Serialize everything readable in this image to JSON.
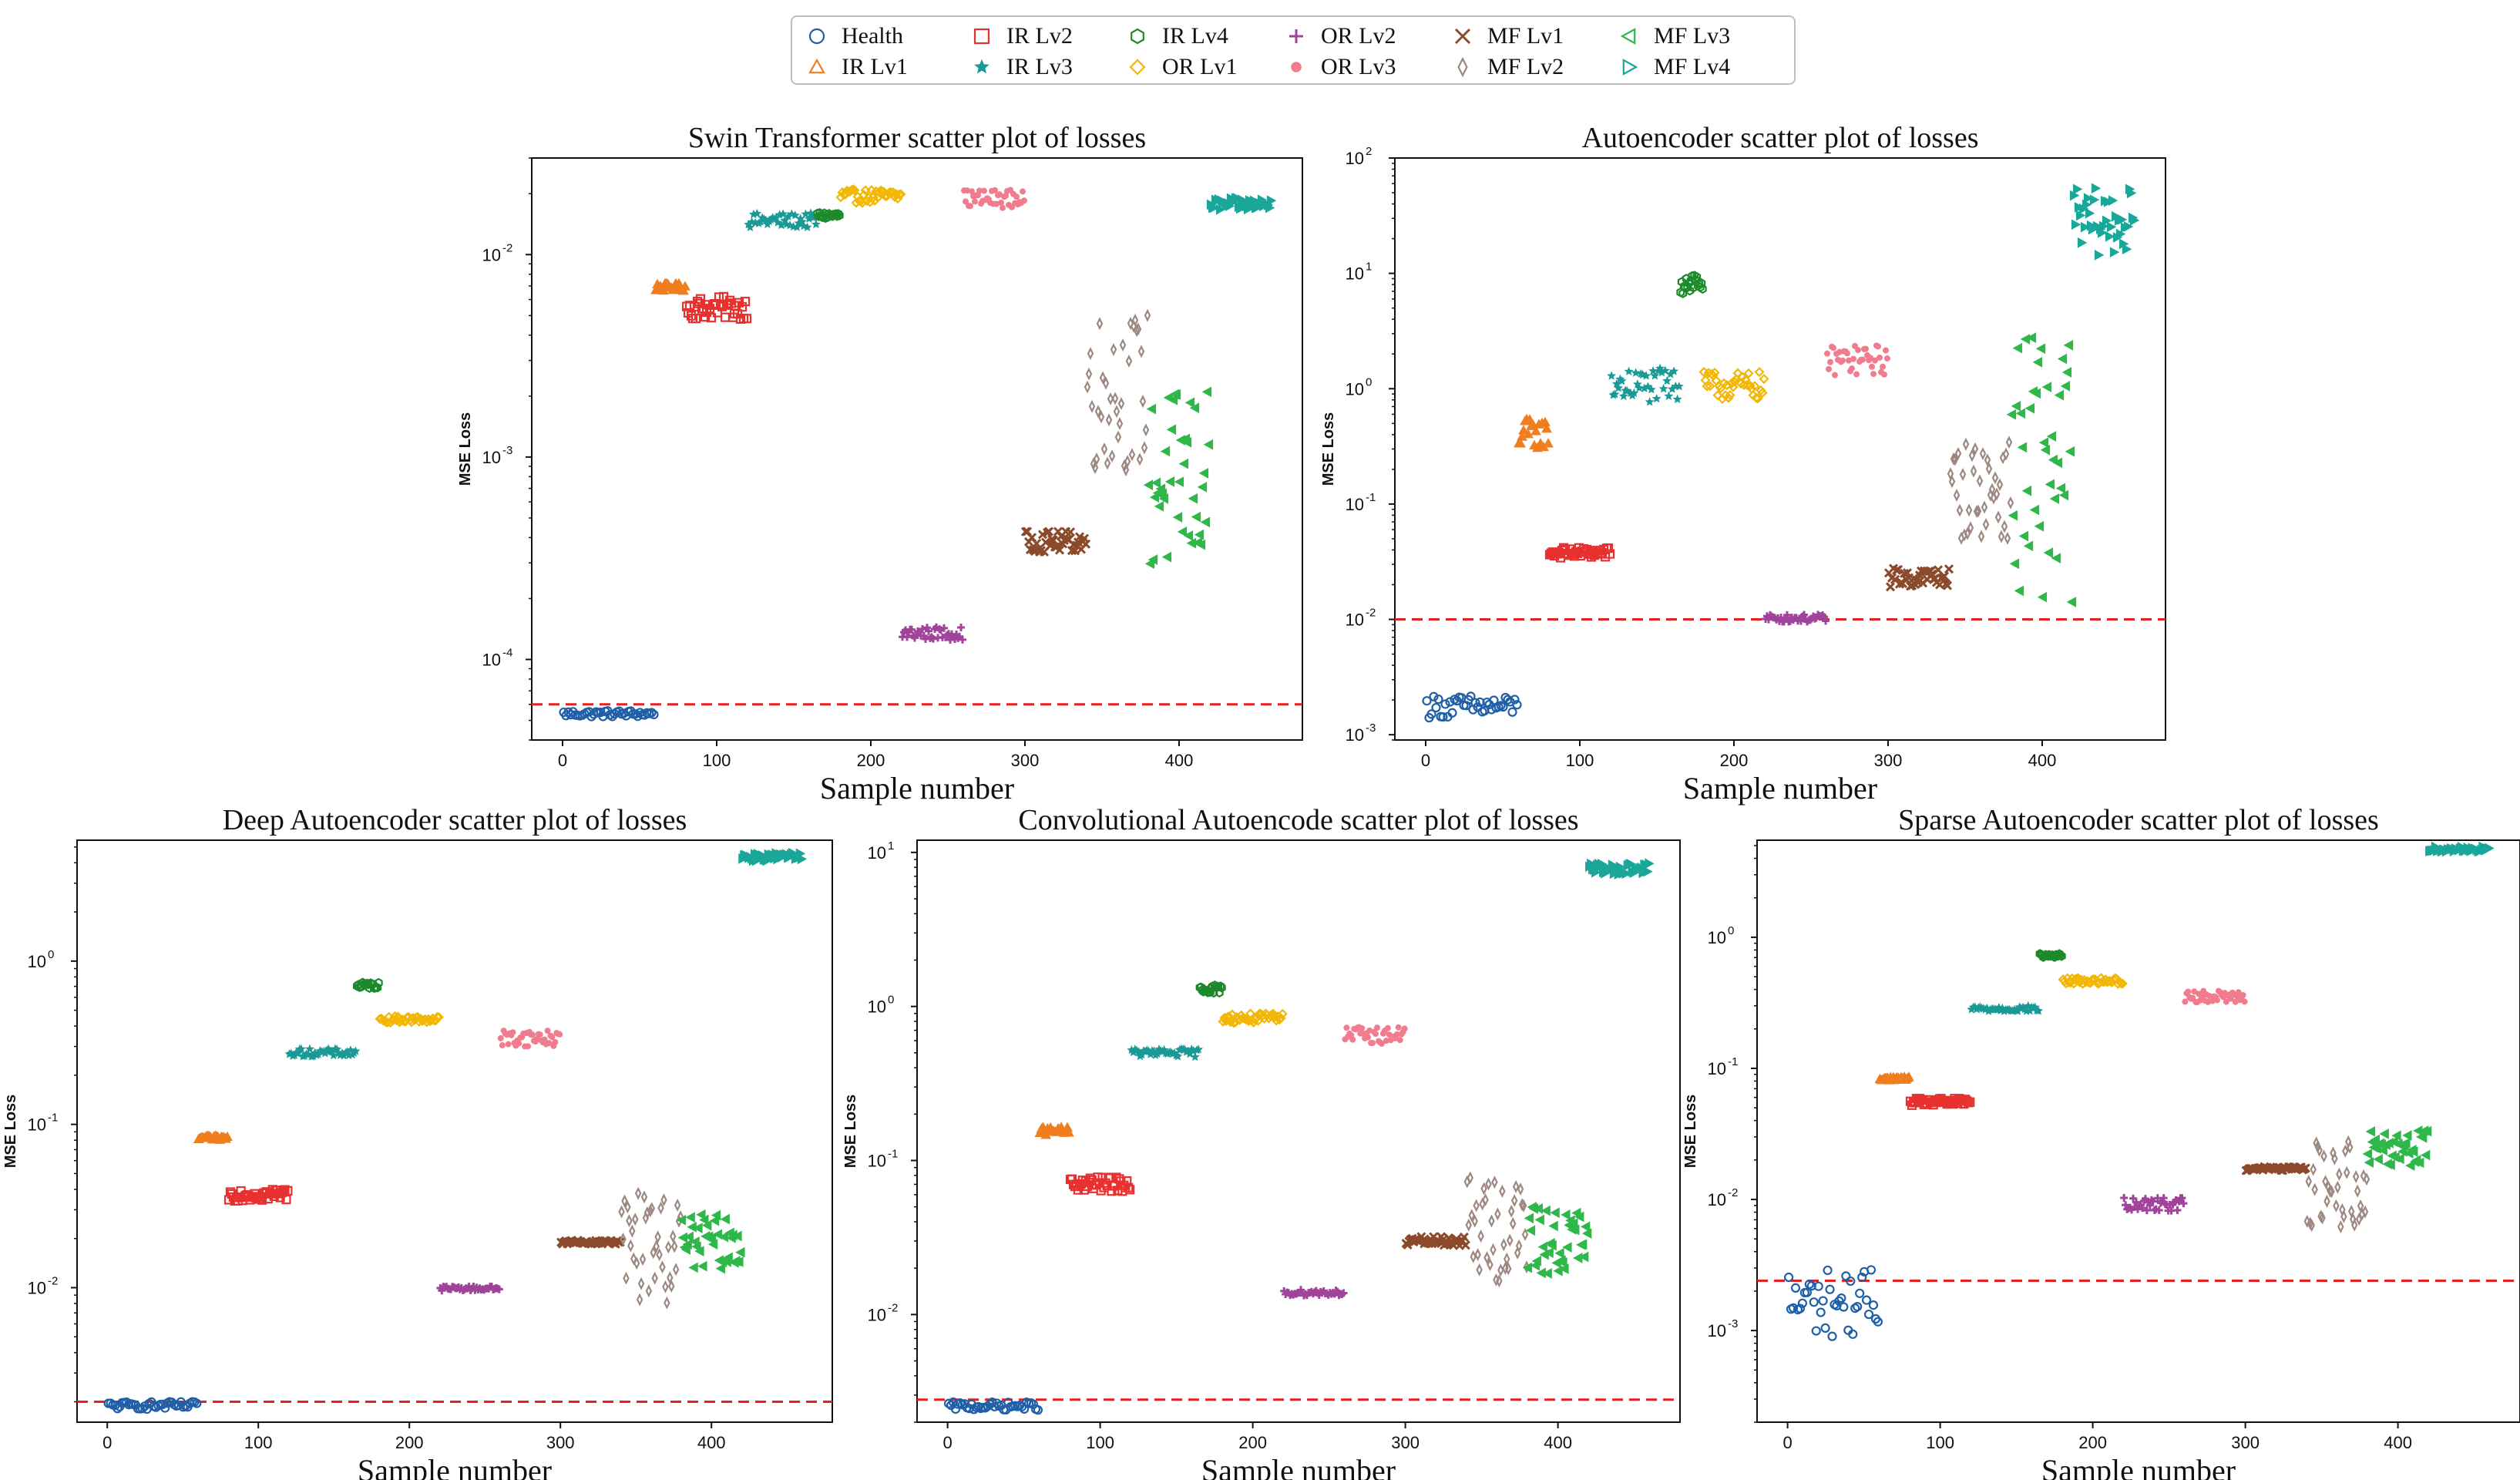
{
  "legend": [
    {
      "key": "health",
      "label": "Health",
      "color": "#1f5fa8",
      "marker": "circle"
    },
    {
      "key": "ir1",
      "label": "IR Lv1",
      "color": "#f07d1e",
      "marker": "triangle-up"
    },
    {
      "key": "ir2",
      "label": "IR Lv2",
      "color": "#e8312f",
      "marker": "square"
    },
    {
      "key": "ir3",
      "label": "IR Lv3",
      "color": "#1a9a96",
      "marker": "star"
    },
    {
      "key": "ir4",
      "label": "IR Lv4",
      "color": "#1c8a2a",
      "marker": "hexagon"
    },
    {
      "key": "or1",
      "label": "OR Lv1",
      "color": "#f2b705",
      "marker": "diamond"
    },
    {
      "key": "or2",
      "label": "OR Lv2",
      "color": "#a0439a",
      "marker": "plus"
    },
    {
      "key": "or3",
      "label": "OR Lv3",
      "color": "#f07c8e",
      "marker": "circle-small"
    },
    {
      "key": "mf1",
      "label": "MF Lv1",
      "color": "#8b4a2b",
      "marker": "x"
    },
    {
      "key": "mf2",
      "label": "MF Lv2",
      "color": "#9c8880",
      "marker": "thin-diamond"
    },
    {
      "key": "mf3",
      "label": "MF Lv3",
      "color": "#2eb84a",
      "marker": "triangle-left"
    },
    {
      "key": "mf4",
      "label": "MF Lv4",
      "color": "#1aa79a",
      "marker": "triangle-right"
    }
  ],
  "chart_data": [
    {
      "type": "scatter",
      "title": "Swin Transformer scatter plot of losses",
      "xlabel": "Sample number",
      "ylabel": "MSE Loss",
      "yscale": "log",
      "xlim": [
        -20,
        480
      ],
      "ylim": [
        4e-05,
        0.03
      ],
      "xticks": [
        0,
        100,
        200,
        300,
        400
      ],
      "yticks": [
        {
          "exp": -4
        },
        {
          "exp": -3
        },
        {
          "exp": -2
        }
      ],
      "threshold": 6e-05,
      "series": [
        {
          "key": "health",
          "x": [
            0,
            60
          ],
          "y": [
            5.2e-05,
            5.6e-05
          ]
        },
        {
          "key": "ir1",
          "x": [
            60,
            80
          ],
          "y": [
            0.0066,
            0.0072
          ]
        },
        {
          "key": "ir2",
          "x": [
            80,
            120
          ],
          "y": [
            0.0048,
            0.0062
          ]
        },
        {
          "key": "ir3",
          "x": [
            120,
            165
          ],
          "y": [
            0.0135,
            0.016
          ]
        },
        {
          "key": "ir4",
          "x": [
            165,
            180
          ],
          "y": [
            0.015,
            0.0162
          ]
        },
        {
          "key": "or1",
          "x": [
            180,
            220
          ],
          "y": [
            0.018,
            0.021
          ]
        },
        {
          "key": "or2",
          "x": [
            220,
            260
          ],
          "y": [
            0.000125,
            0.000145
          ]
        },
        {
          "key": "or3",
          "x": [
            260,
            300
          ],
          "y": [
            0.017,
            0.021
          ]
        },
        {
          "key": "mf1",
          "x": [
            300,
            340
          ],
          "y": [
            0.00034,
            0.00043
          ]
        },
        {
          "key": "mf2",
          "x": [
            340,
            380
          ],
          "y": [
            0.00085,
            0.0052
          ]
        },
        {
          "key": "mf3",
          "x": [
            380,
            420
          ],
          "y": [
            0.00026,
            0.0022
          ]
        },
        {
          "key": "mf4",
          "x": [
            420,
            460
          ],
          "y": [
            0.0165,
            0.019
          ]
        }
      ]
    },
    {
      "type": "scatter",
      "title": "Autoencoder scatter plot of losses",
      "xlabel": "Sample number",
      "ylabel": "MSE Loss",
      "yscale": "log",
      "xlim": [
        -20,
        480
      ],
      "ylim": [
        0.0009,
        100
      ],
      "xticks": [
        0,
        100,
        200,
        300,
        400
      ],
      "yticks": [
        {
          "exp": -3
        },
        {
          "exp": -2
        },
        {
          "exp": -1
        },
        {
          "exp": 0
        },
        {
          "exp": 1
        },
        {
          "exp": 2
        }
      ],
      "threshold": 0.01,
      "series": [
        {
          "key": "health",
          "x": [
            0,
            60
          ],
          "y": [
            0.0014,
            0.0022
          ]
        },
        {
          "key": "ir1",
          "x": [
            60,
            80
          ],
          "y": [
            0.3,
            0.55
          ]
        },
        {
          "key": "ir2",
          "x": [
            80,
            120
          ],
          "y": [
            0.034,
            0.042
          ]
        },
        {
          "key": "ir3",
          "x": [
            120,
            165
          ],
          "y": [
            0.75,
            1.5
          ]
        },
        {
          "key": "ir4",
          "x": [
            165,
            180
          ],
          "y": [
            6.5,
            11
          ]
        },
        {
          "key": "or1",
          "x": [
            180,
            220
          ],
          "y": [
            0.8,
            1.4
          ]
        },
        {
          "key": "or2",
          "x": [
            220,
            260
          ],
          "y": [
            0.0095,
            0.011
          ]
        },
        {
          "key": "or3",
          "x": [
            260,
            300
          ],
          "y": [
            1.3,
            2.4
          ]
        },
        {
          "key": "mf1",
          "x": [
            300,
            340
          ],
          "y": [
            0.019,
            0.028
          ]
        },
        {
          "key": "mf2",
          "x": [
            340,
            380
          ],
          "y": [
            0.05,
            0.35
          ]
        },
        {
          "key": "mf3",
          "x": [
            380,
            420
          ],
          "y": [
            0.014,
            3.2
          ]
        },
        {
          "key": "mf4",
          "x": [
            420,
            460
          ],
          "y": [
            14,
            55
          ]
        }
      ]
    },
    {
      "type": "scatter",
      "title": "Deep Autoencoder scatter plot of losses",
      "xlabel": "Sample number",
      "ylabel": "MSE Loss",
      "yscale": "log",
      "xlim": [
        -20,
        480
      ],
      "ylim": [
        0.0015,
        5.5
      ],
      "xticks": [
        0,
        100,
        200,
        300,
        400
      ],
      "yticks": [
        {
          "exp": -2
        },
        {
          "exp": -1
        },
        {
          "exp": 0
        }
      ],
      "threshold": 0.002,
      "series": [
        {
          "key": "health",
          "x": [
            0,
            60
          ],
          "y": [
            0.0018,
            0.002
          ]
        },
        {
          "key": "ir1",
          "x": [
            60,
            80
          ],
          "y": [
            0.08,
            0.085
          ]
        },
        {
          "key": "ir2",
          "x": [
            80,
            120
          ],
          "y": [
            0.034,
            0.041
          ]
        },
        {
          "key": "ir3",
          "x": [
            120,
            165
          ],
          "y": [
            0.26,
            0.29
          ]
        },
        {
          "key": "ir4",
          "x": [
            165,
            180
          ],
          "y": [
            0.68,
            0.74
          ]
        },
        {
          "key": "or1",
          "x": [
            180,
            220
          ],
          "y": [
            0.42,
            0.46
          ]
        },
        {
          "key": "or2",
          "x": [
            220,
            260
          ],
          "y": [
            0.0096,
            0.0102
          ]
        },
        {
          "key": "or3",
          "x": [
            260,
            300
          ],
          "y": [
            0.3,
            0.38
          ]
        },
        {
          "key": "mf1",
          "x": [
            300,
            340
          ],
          "y": [
            0.0185,
            0.0195
          ]
        },
        {
          "key": "mf2",
          "x": [
            340,
            380
          ],
          "y": [
            0.008,
            0.04
          ]
        },
        {
          "key": "mf3",
          "x": [
            380,
            420
          ],
          "y": [
            0.013,
            0.028
          ]
        },
        {
          "key": "mf4",
          "x": [
            420,
            460
          ],
          "y": [
            4.1,
            4.6
          ]
        }
      ]
    },
    {
      "type": "scatter",
      "title": "Convolutional Autoencode scatter plot of losses",
      "xlabel": "Sample number",
      "ylabel": "MSE Loss",
      "yscale": "log",
      "xlim": [
        -20,
        480
      ],
      "ylim": [
        0.002,
        12
      ],
      "xticks": [
        0,
        100,
        200,
        300,
        400
      ],
      "yticks": [
        {
          "exp": -2
        },
        {
          "exp": -1
        },
        {
          "exp": 0
        },
        {
          "exp": 1
        }
      ],
      "threshold": 0.0028,
      "series": [
        {
          "key": "health",
          "x": [
            0,
            60
          ],
          "y": [
            0.0024,
            0.0027
          ]
        },
        {
          "key": "ir1",
          "x": [
            60,
            80
          ],
          "y": [
            0.145,
            0.165
          ]
        },
        {
          "key": "ir2",
          "x": [
            80,
            120
          ],
          "y": [
            0.063,
            0.078
          ]
        },
        {
          "key": "ir3",
          "x": [
            120,
            165
          ],
          "y": [
            0.47,
            0.53
          ]
        },
        {
          "key": "ir4",
          "x": [
            165,
            180
          ],
          "y": [
            1.22,
            1.38
          ]
        },
        {
          "key": "or1",
          "x": [
            180,
            220
          ],
          "y": [
            0.78,
            0.9
          ]
        },
        {
          "key": "or2",
          "x": [
            220,
            260
          ],
          "y": [
            0.0133,
            0.0145
          ]
        },
        {
          "key": "or3",
          "x": [
            260,
            300
          ],
          "y": [
            0.57,
            0.74
          ]
        },
        {
          "key": "mf1",
          "x": [
            300,
            340
          ],
          "y": [
            0.028,
            0.032
          ]
        },
        {
          "key": "mf2",
          "x": [
            340,
            380
          ],
          "y": [
            0.016,
            0.08
          ]
        },
        {
          "key": "mf3",
          "x": [
            380,
            420
          ],
          "y": [
            0.018,
            0.05
          ]
        },
        {
          "key": "mf4",
          "x": [
            420,
            460
          ],
          "y": [
            7.2,
            8.5
          ]
        }
      ]
    },
    {
      "type": "scatter",
      "title": "Sparse Autoencoder scatter plot of losses",
      "xlabel": "Sample number",
      "ylabel": "MSE Loss",
      "yscale": "log",
      "xlim": [
        -20,
        480
      ],
      "ylim": [
        0.0002,
        5.5
      ],
      "xticks": [
        0,
        100,
        200,
        300,
        400
      ],
      "yticks": [
        {
          "exp": -3
        },
        {
          "exp": -2
        },
        {
          "exp": -1
        },
        {
          "exp": 0
        }
      ],
      "threshold": 0.0024,
      "series": [
        {
          "key": "health",
          "x": [
            0,
            60
          ],
          "y": [
            0.0009,
            0.003
          ]
        },
        {
          "key": "ir1",
          "x": [
            60,
            80
          ],
          "y": [
            0.081,
            0.086
          ]
        },
        {
          "key": "ir2",
          "x": [
            80,
            120
          ],
          "y": [
            0.052,
            0.059
          ]
        },
        {
          "key": "ir3",
          "x": [
            120,
            165
          ],
          "y": [
            0.27,
            0.3
          ]
        },
        {
          "key": "ir4",
          "x": [
            165,
            180
          ],
          "y": [
            0.7,
            0.75
          ]
        },
        {
          "key": "or1",
          "x": [
            180,
            220
          ],
          "y": [
            0.44,
            0.49
          ]
        },
        {
          "key": "or2",
          "x": [
            220,
            260
          ],
          "y": [
            0.0082,
            0.0104
          ]
        },
        {
          "key": "or3",
          "x": [
            260,
            300
          ],
          "y": [
            0.32,
            0.39
          ]
        },
        {
          "key": "mf1",
          "x": [
            300,
            340
          ],
          "y": [
            0.0166,
            0.0178
          ]
        },
        {
          "key": "mf2",
          "x": [
            340,
            380
          ],
          "y": [
            0.006,
            0.03
          ]
        },
        {
          "key": "mf3",
          "x": [
            380,
            420
          ],
          "y": [
            0.018,
            0.035
          ]
        },
        {
          "key": "mf4",
          "x": [
            420,
            460
          ],
          "y": [
            4.5,
            4.9
          ]
        }
      ]
    }
  ]
}
